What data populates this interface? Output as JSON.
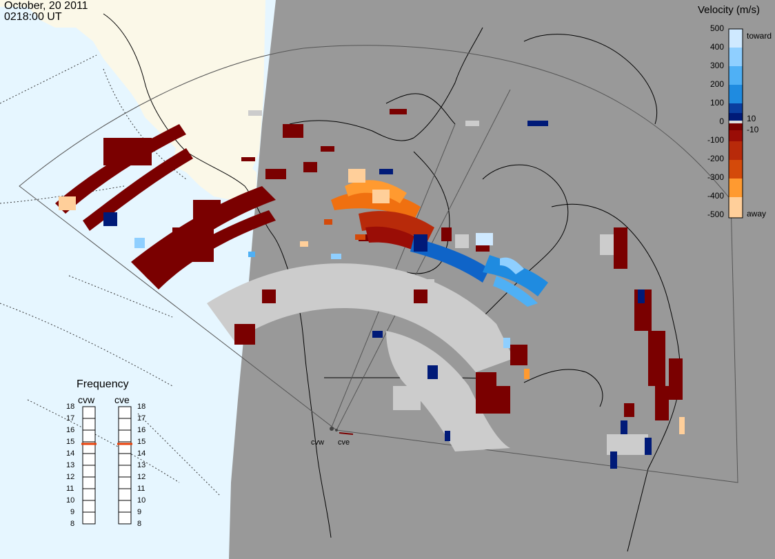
{
  "header": {
    "date": "October, 20 2011",
    "time": "0218:00 UT"
  },
  "colorbar": {
    "title": "Velocity (m/s)",
    "ticks": [
      "500",
      "400",
      "300",
      "200",
      "100",
      "0",
      "-100",
      "-200",
      "-300",
      "-400",
      "-500"
    ],
    "low_ticks": [
      "10",
      "-10"
    ],
    "toward_label": "toward",
    "away_label": "away",
    "colors": [
      "#cfe9ff",
      "#8fcfff",
      "#4fb0f5",
      "#1f8be0",
      "#0f64c8",
      "#0a3ea0",
      "#001a78",
      "#aaaaaa",
      "#7a0000",
      "#9a0d06",
      "#b82a0a",
      "#d44a0a",
      "#f07010",
      "#ff9a30",
      "#ffcf9a"
    ]
  },
  "frequency": {
    "title": "Frequency",
    "radars": [
      {
        "name": "cvw",
        "value_mhz": 15
      },
      {
        "name": "cve",
        "value_mhz": 15
      }
    ],
    "scale": [
      "18",
      "17",
      "16",
      "15",
      "14",
      "13",
      "12",
      "11",
      "10",
      "9",
      "8"
    ],
    "indicator_color": "#e8400a"
  },
  "radar_sites": [
    "cvw",
    "cve"
  ],
  "map": {
    "sunlit_color": "#e6f6ff",
    "land_sunlit_color": "#fbf8e8",
    "night_color": "#999999",
    "ground_scatter_color": "#cccccc"
  }
}
